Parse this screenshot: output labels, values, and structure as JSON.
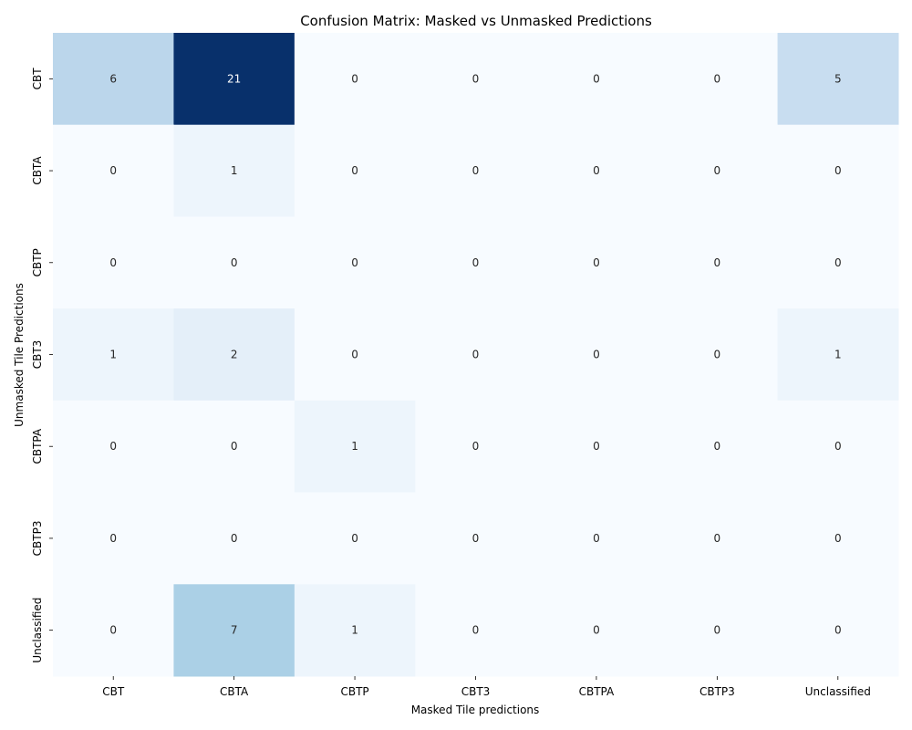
{
  "chart_data": {
    "type": "heatmap",
    "title": "Confusion Matrix: Masked vs Unmasked Predictions",
    "xlabel": "Masked Tile predictions",
    "ylabel": "Unmasked Tile Predictions",
    "x_categories": [
      "CBT",
      "CBTA",
      "CBTP",
      "CBT3",
      "CBTPA",
      "CBTP3",
      "Unclassified"
    ],
    "y_categories": [
      "CBT",
      "CBTA",
      "CBTP",
      "CBT3",
      "CBTPA",
      "CBTP3",
      "Unclassified"
    ],
    "values": [
      [
        6,
        21,
        0,
        0,
        0,
        0,
        5
      ],
      [
        0,
        1,
        0,
        0,
        0,
        0,
        0
      ],
      [
        0,
        0,
        0,
        0,
        0,
        0,
        0
      ],
      [
        1,
        2,
        0,
        0,
        0,
        0,
        1
      ],
      [
        0,
        0,
        1,
        0,
        0,
        0,
        0
      ],
      [
        0,
        0,
        0,
        0,
        0,
        0,
        0
      ],
      [
        0,
        7,
        1,
        0,
        0,
        0,
        0
      ]
    ],
    "colormap": "Blues",
    "vmin": 0,
    "vmax": 21,
    "grid": false,
    "colorbar": false
  }
}
